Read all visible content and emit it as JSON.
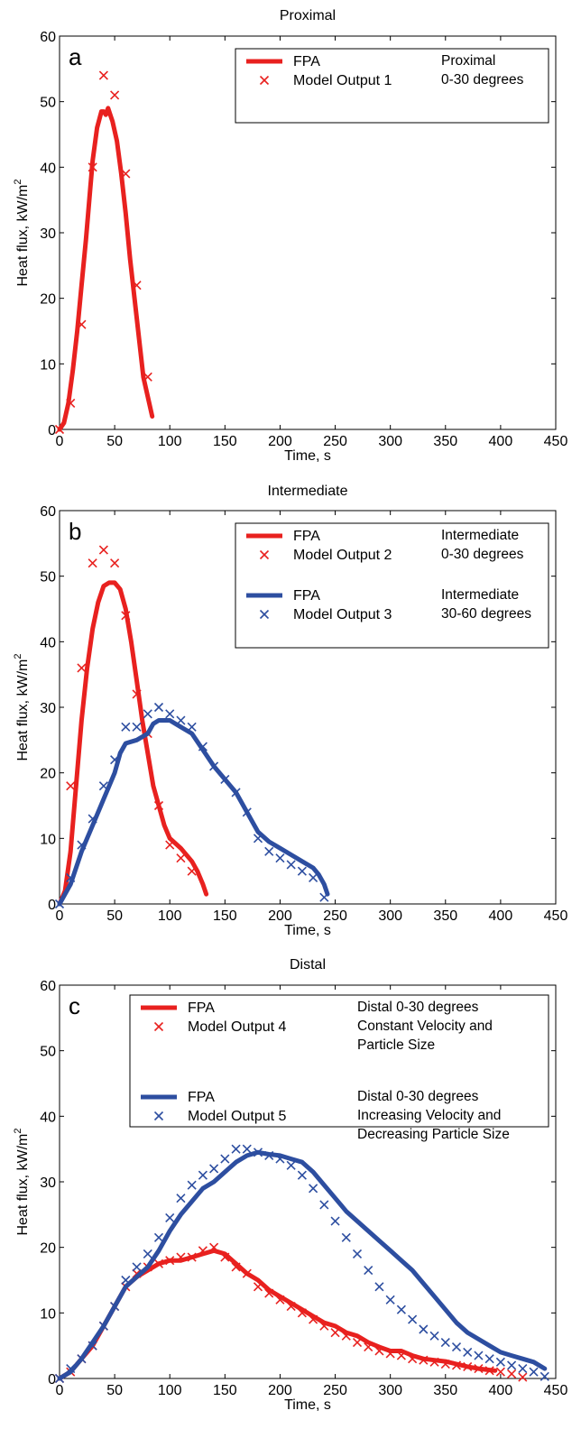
{
  "chart_data": [
    {
      "type": "line",
      "title": "Proximal",
      "panel_label": "a",
      "xlabel": "Time, s",
      "ylabel_prefix": "Heat flux, kW/m",
      "ylabel_sup": "2",
      "xlim": [
        0,
        450
      ],
      "ylim": [
        0,
        60
      ],
      "xticks": [
        0,
        50,
        100,
        150,
        200,
        250,
        300,
        350,
        400,
        450
      ],
      "yticks": [
        0,
        10,
        20,
        30,
        40,
        50,
        60
      ],
      "grid": false,
      "legend_position": "top-right",
      "legend": {
        "groups": [
          {
            "entries": [
              {
                "label": "FPA",
                "series": 0,
                "style": "line"
              },
              {
                "label": "Model Output 1",
                "series": 1,
                "style": "marker"
              }
            ],
            "note": [
              "Proximal",
              "0-30 degrees"
            ]
          }
        ]
      },
      "series": [
        {
          "color": "#e8211f",
          "style": "line",
          "x": [
            0,
            4,
            8,
            12,
            16,
            20,
            24,
            28,
            30,
            34,
            38,
            40,
            42,
            44,
            46,
            48,
            52,
            56,
            60,
            64,
            68,
            72,
            76,
            80,
            84
          ],
          "y": [
            0,
            1,
            4,
            9,
            15,
            22,
            29,
            37,
            41,
            46,
            48.5,
            48.5,
            48,
            49,
            48,
            47,
            44,
            39,
            33,
            26,
            20,
            14,
            8,
            5,
            2
          ]
        },
        {
          "color": "#e8211f",
          "style": "marker",
          "x": [
            0,
            10,
            20,
            30,
            40,
            50,
            60,
            70,
            80
          ],
          "y": [
            0,
            4,
            16,
            40,
            54,
            51,
            39,
            22,
            8
          ]
        }
      ]
    },
    {
      "type": "line",
      "title": "Intermediate",
      "panel_label": "b",
      "xlabel": "Time, s",
      "ylabel_prefix": "Heat flux, kW/m",
      "ylabel_sup": "2",
      "xlim": [
        0,
        450
      ],
      "ylim": [
        0,
        60
      ],
      "xticks": [
        0,
        50,
        100,
        150,
        200,
        250,
        300,
        350,
        400,
        450
      ],
      "yticks": [
        0,
        10,
        20,
        30,
        40,
        50,
        60
      ],
      "grid": false,
      "legend_position": "top-right",
      "legend": {
        "groups": [
          {
            "entries": [
              {
                "label": "FPA",
                "series": 0,
                "style": "line"
              },
              {
                "label": "Model Output 2",
                "series": 1,
                "style": "marker"
              }
            ],
            "note": [
              "Intermediate",
              "0-30 degrees"
            ]
          },
          {
            "entries": [
              {
                "label": "FPA",
                "series": 2,
                "style": "line"
              },
              {
                "label": "Model Output 3",
                "series": 3,
                "style": "marker"
              }
            ],
            "note": [
              "Intermediate",
              "30-60 degrees"
            ]
          }
        ]
      },
      "series": [
        {
          "color": "#e8211f",
          "style": "line",
          "x": [
            0,
            5,
            10,
            15,
            20,
            25,
            30,
            35,
            40,
            45,
            50,
            55,
            60,
            65,
            70,
            75,
            80,
            85,
            90,
            95,
            100,
            110,
            120,
            125,
            130,
            133
          ],
          "y": [
            0,
            2,
            8,
            18,
            28,
            36,
            42,
            46,
            48.5,
            49,
            49,
            48,
            45,
            40,
            34,
            28,
            23,
            18,
            15,
            12,
            10,
            8.5,
            6.5,
            5,
            3,
            1.5
          ]
        },
        {
          "color": "#e8211f",
          "style": "marker",
          "x": [
            10,
            20,
            30,
            40,
            50,
            60,
            70,
            80,
            90,
            100,
            110,
            120
          ],
          "y": [
            18,
            36,
            52,
            54,
            52,
            44,
            32,
            26,
            15,
            9,
            7,
            5
          ]
        },
        {
          "color": "#2d4ea0",
          "style": "line",
          "x": [
            0,
            10,
            20,
            30,
            40,
            50,
            55,
            60,
            70,
            80,
            85,
            90,
            100,
            110,
            120,
            130,
            140,
            150,
            160,
            170,
            180,
            190,
            200,
            210,
            220,
            230,
            235,
            240,
            243
          ],
          "y": [
            0,
            3,
            8,
            12,
            16,
            20,
            23,
            24.5,
            25,
            26,
            27.5,
            28,
            28,
            27,
            26,
            23.5,
            21,
            19,
            17,
            14,
            11,
            9.5,
            8.5,
            7.5,
            6.5,
            5.5,
            4.5,
            3,
            1.5
          ]
        },
        {
          "color": "#2d4ea0",
          "style": "marker",
          "x": [
            0,
            10,
            20,
            30,
            40,
            50,
            60,
            70,
            80,
            90,
            100,
            110,
            120,
            130,
            140,
            150,
            160,
            170,
            180,
            190,
            200,
            210,
            220,
            230,
            240
          ],
          "y": [
            0,
            4,
            9,
            13,
            18,
            22,
            27,
            27,
            29,
            30,
            29,
            28,
            27,
            24,
            21,
            19,
            17,
            14,
            10,
            8,
            7,
            6,
            5,
            4,
            1
          ]
        }
      ]
    },
    {
      "type": "line",
      "title": "Distal",
      "panel_label": "c",
      "xlabel": "Time, s",
      "ylabel_prefix": "Heat flux, kW/m",
      "ylabel_sup": "2",
      "xlim": [
        0,
        450
      ],
      "ylim": [
        0,
        60
      ],
      "xticks": [
        0,
        50,
        100,
        150,
        200,
        250,
        300,
        350,
        400,
        450
      ],
      "yticks": [
        0,
        10,
        20,
        30,
        40,
        50,
        60
      ],
      "grid": false,
      "legend_position": "top-right",
      "legend": {
        "groups": [
          {
            "entries": [
              {
                "label": "FPA",
                "series": 0,
                "style": "line"
              },
              {
                "label": "Model Output 4",
                "series": 1,
                "style": "marker"
              }
            ],
            "note": [
              "Distal 0-30 degrees",
              "Constant Velocity and",
              "Particle Size"
            ]
          },
          {
            "entries": [
              {
                "label": "FPA",
                "series": 2,
                "style": "line"
              },
              {
                "label": "Model Output 5",
                "series": 3,
                "style": "marker"
              }
            ],
            "note": [
              "Distal 0-30 degrees",
              "Increasing Velocity and",
              "Decreasing Particle Size"
            ]
          }
        ]
      },
      "series": [
        {
          "color": "#e8211f",
          "style": "line",
          "x": [
            0,
            10,
            20,
            30,
            40,
            50,
            60,
            70,
            80,
            90,
            100,
            110,
            120,
            130,
            140,
            150,
            160,
            170,
            180,
            190,
            200,
            210,
            220,
            230,
            240,
            250,
            260,
            270,
            280,
            290,
            300,
            310,
            320,
            330,
            340,
            350,
            360,
            370,
            380,
            390,
            395
          ],
          "y": [
            0,
            1,
            3,
            5,
            8,
            11,
            14,
            15.5,
            16.5,
            17.5,
            18,
            18,
            18.5,
            19,
            19.5,
            19,
            17.5,
            16,
            15,
            13.5,
            12.5,
            11.5,
            10.5,
            9.5,
            8.5,
            8,
            7,
            6.5,
            5.5,
            4.8,
            4.2,
            4.2,
            3.5,
            3,
            2.8,
            2.6,
            2.2,
            1.8,
            1.5,
            1.3,
            1.2
          ]
        },
        {
          "color": "#e8211f",
          "style": "marker",
          "x": [
            0,
            10,
            20,
            30,
            40,
            50,
            60,
            70,
            80,
            90,
            100,
            110,
            120,
            130,
            140,
            150,
            160,
            170,
            180,
            190,
            200,
            210,
            220,
            230,
            240,
            250,
            260,
            270,
            280,
            290,
            300,
            310,
            320,
            330,
            340,
            350,
            360,
            370,
            380,
            390,
            400,
            410,
            420
          ],
          "y": [
            0,
            1,
            3,
            5,
            8,
            11,
            14,
            16,
            17,
            17.5,
            18,
            18.5,
            18.5,
            19.5,
            20,
            18.5,
            17,
            16,
            14,
            13,
            12,
            11,
            10,
            9,
            8,
            7,
            6.5,
            5.5,
            4.8,
            4.2,
            3.8,
            3.5,
            3,
            2.8,
            2.5,
            2.2,
            2,
            1.8,
            1.5,
            1.2,
            1,
            0.7,
            0.2
          ]
        },
        {
          "color": "#2d4ea0",
          "style": "line",
          "x": [
            0,
            10,
            20,
            30,
            40,
            50,
            60,
            70,
            80,
            90,
            100,
            110,
            120,
            130,
            140,
            150,
            160,
            170,
            180,
            190,
            200,
            210,
            220,
            230,
            240,
            250,
            260,
            270,
            280,
            290,
            300,
            310,
            320,
            330,
            340,
            350,
            360,
            370,
            380,
            390,
            400,
            410,
            420,
            430,
            440
          ],
          "y": [
            0,
            1,
            3,
            5.5,
            8,
            11,
            14,
            15.5,
            17,
            19.5,
            22.5,
            25,
            27,
            29,
            30,
            31.5,
            33,
            34,
            34.5,
            34.2,
            34,
            33.5,
            33,
            31.5,
            29.5,
            27.5,
            25.5,
            24,
            22.5,
            21,
            19.5,
            18,
            16.5,
            14.5,
            12.5,
            10.5,
            8.5,
            7,
            6,
            5,
            4,
            3.5,
            3,
            2.5,
            1.5
          ]
        },
        {
          "color": "#2d4ea0",
          "style": "marker",
          "x": [
            0,
            10,
            20,
            30,
            40,
            50,
            60,
            70,
            80,
            90,
            100,
            110,
            120,
            130,
            140,
            150,
            160,
            170,
            180,
            190,
            200,
            210,
            220,
            230,
            240,
            250,
            260,
            270,
            280,
            290,
            300,
            310,
            320,
            330,
            340,
            350,
            360,
            370,
            380,
            390,
            400,
            410,
            420,
            430,
            440
          ],
          "y": [
            0,
            1.5,
            3,
            5,
            8,
            11,
            15,
            17,
            19,
            21.5,
            24.5,
            27.5,
            29.5,
            31,
            32,
            33.5,
            35,
            35,
            34.5,
            34,
            33.5,
            32.5,
            31,
            29,
            26.5,
            24,
            21.5,
            19,
            16.5,
            14,
            12,
            10.5,
            9,
            7.5,
            6.5,
            5.5,
            4.8,
            4,
            3.5,
            3,
            2.5,
            2,
            1.5,
            1,
            0.3
          ]
        }
      ]
    }
  ]
}
